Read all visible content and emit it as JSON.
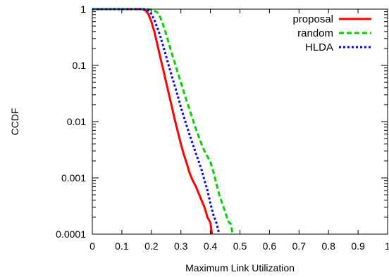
{
  "chart_data": {
    "type": "line",
    "title": "",
    "xlabel": "Maximum Link Utilization",
    "ylabel": "CCDF",
    "xlim": [
      0,
      1
    ],
    "ylim": [
      0.0001,
      1
    ],
    "yscale": "log",
    "grid": false,
    "legend_position": "top-right",
    "x_ticks": [
      0,
      0.1,
      0.2,
      0.3,
      0.4,
      0.5,
      0.6,
      0.7,
      0.8,
      0.9,
      1
    ],
    "x_tick_labels": [
      "0",
      "0.1",
      "0.2",
      "0.3",
      "0.4",
      "0.5",
      "0.6",
      "0.7",
      "0.8",
      "0.9",
      "1"
    ],
    "y_ticks": [
      0.0001,
      0.001,
      0.01,
      0.1,
      1
    ],
    "y_tick_labels": [
      "0.0001",
      "0.001",
      "0.01",
      "0.1",
      "1"
    ],
    "series": [
      {
        "name": "proposal",
        "color": "#ff0000",
        "dash": "solid",
        "points": [
          [
            0,
            1
          ],
          [
            0.16,
            1
          ],
          [
            0.17,
            0.99
          ],
          [
            0.18,
            0.95
          ],
          [
            0.19,
            0.82
          ],
          [
            0.2,
            0.6
          ],
          [
            0.21,
            0.4
          ],
          [
            0.22,
            0.24
          ],
          [
            0.23,
            0.14
          ],
          [
            0.24,
            0.085
          ],
          [
            0.25,
            0.05
          ],
          [
            0.26,
            0.03
          ],
          [
            0.27,
            0.018
          ],
          [
            0.28,
            0.0105
          ],
          [
            0.29,
            0.0065
          ],
          [
            0.3,
            0.004
          ],
          [
            0.31,
            0.0026
          ],
          [
            0.32,
            0.0018
          ],
          [
            0.33,
            0.0012
          ],
          [
            0.34,
            0.0009
          ],
          [
            0.35,
            0.00072
          ],
          [
            0.36,
            0.00054
          ],
          [
            0.37,
            0.0004
          ],
          [
            0.38,
            0.0003
          ],
          [
            0.39,
            0.0002
          ],
          [
            0.4,
            0.00016
          ],
          [
            0.405,
            0.0001
          ]
        ]
      },
      {
        "name": "random",
        "color": "#00d000",
        "dash": "dashed",
        "points": [
          [
            0,
            1
          ],
          [
            0.18,
            1
          ],
          [
            0.2,
            0.98
          ],
          [
            0.22,
            0.88
          ],
          [
            0.23,
            0.72
          ],
          [
            0.24,
            0.52
          ],
          [
            0.25,
            0.36
          ],
          [
            0.26,
            0.24
          ],
          [
            0.27,
            0.16
          ],
          [
            0.28,
            0.108
          ],
          [
            0.29,
            0.073
          ],
          [
            0.3,
            0.05
          ],
          [
            0.31,
            0.034
          ],
          [
            0.32,
            0.023
          ],
          [
            0.33,
            0.016
          ],
          [
            0.34,
            0.011
          ],
          [
            0.35,
            0.0077
          ],
          [
            0.36,
            0.0055
          ],
          [
            0.37,
            0.004
          ],
          [
            0.38,
            0.003
          ],
          [
            0.39,
            0.0024
          ],
          [
            0.4,
            0.0019
          ],
          [
            0.41,
            0.0013
          ],
          [
            0.42,
            0.0008
          ],
          [
            0.43,
            0.0005
          ],
          [
            0.44,
            0.00035
          ],
          [
            0.45,
            0.00025
          ],
          [
            0.46,
            0.00017
          ],
          [
            0.47,
            0.00015
          ],
          [
            0.475,
            0.0001
          ]
        ]
      },
      {
        "name": "HLDA",
        "color": "#0000ff",
        "dash": "dotted",
        "points": [
          [
            0,
            1
          ],
          [
            0.17,
            1
          ],
          [
            0.18,
            0.99
          ],
          [
            0.19,
            0.94
          ],
          [
            0.2,
            0.82
          ],
          [
            0.21,
            0.65
          ],
          [
            0.22,
            0.47
          ],
          [
            0.23,
            0.33
          ],
          [
            0.24,
            0.22
          ],
          [
            0.25,
            0.145
          ],
          [
            0.26,
            0.095
          ],
          [
            0.27,
            0.063
          ],
          [
            0.28,
            0.042
          ],
          [
            0.29,
            0.028
          ],
          [
            0.3,
            0.018
          ],
          [
            0.31,
            0.0122
          ],
          [
            0.32,
            0.0083
          ],
          [
            0.33,
            0.0057
          ],
          [
            0.34,
            0.004
          ],
          [
            0.35,
            0.0028
          ],
          [
            0.36,
            0.002
          ],
          [
            0.37,
            0.0014
          ],
          [
            0.38,
            0.0009
          ],
          [
            0.39,
            0.0006
          ],
          [
            0.4,
            0.00035
          ],
          [
            0.41,
            0.00022
          ],
          [
            0.42,
            0.00016
          ],
          [
            0.43,
            0.0001
          ]
        ]
      }
    ]
  }
}
